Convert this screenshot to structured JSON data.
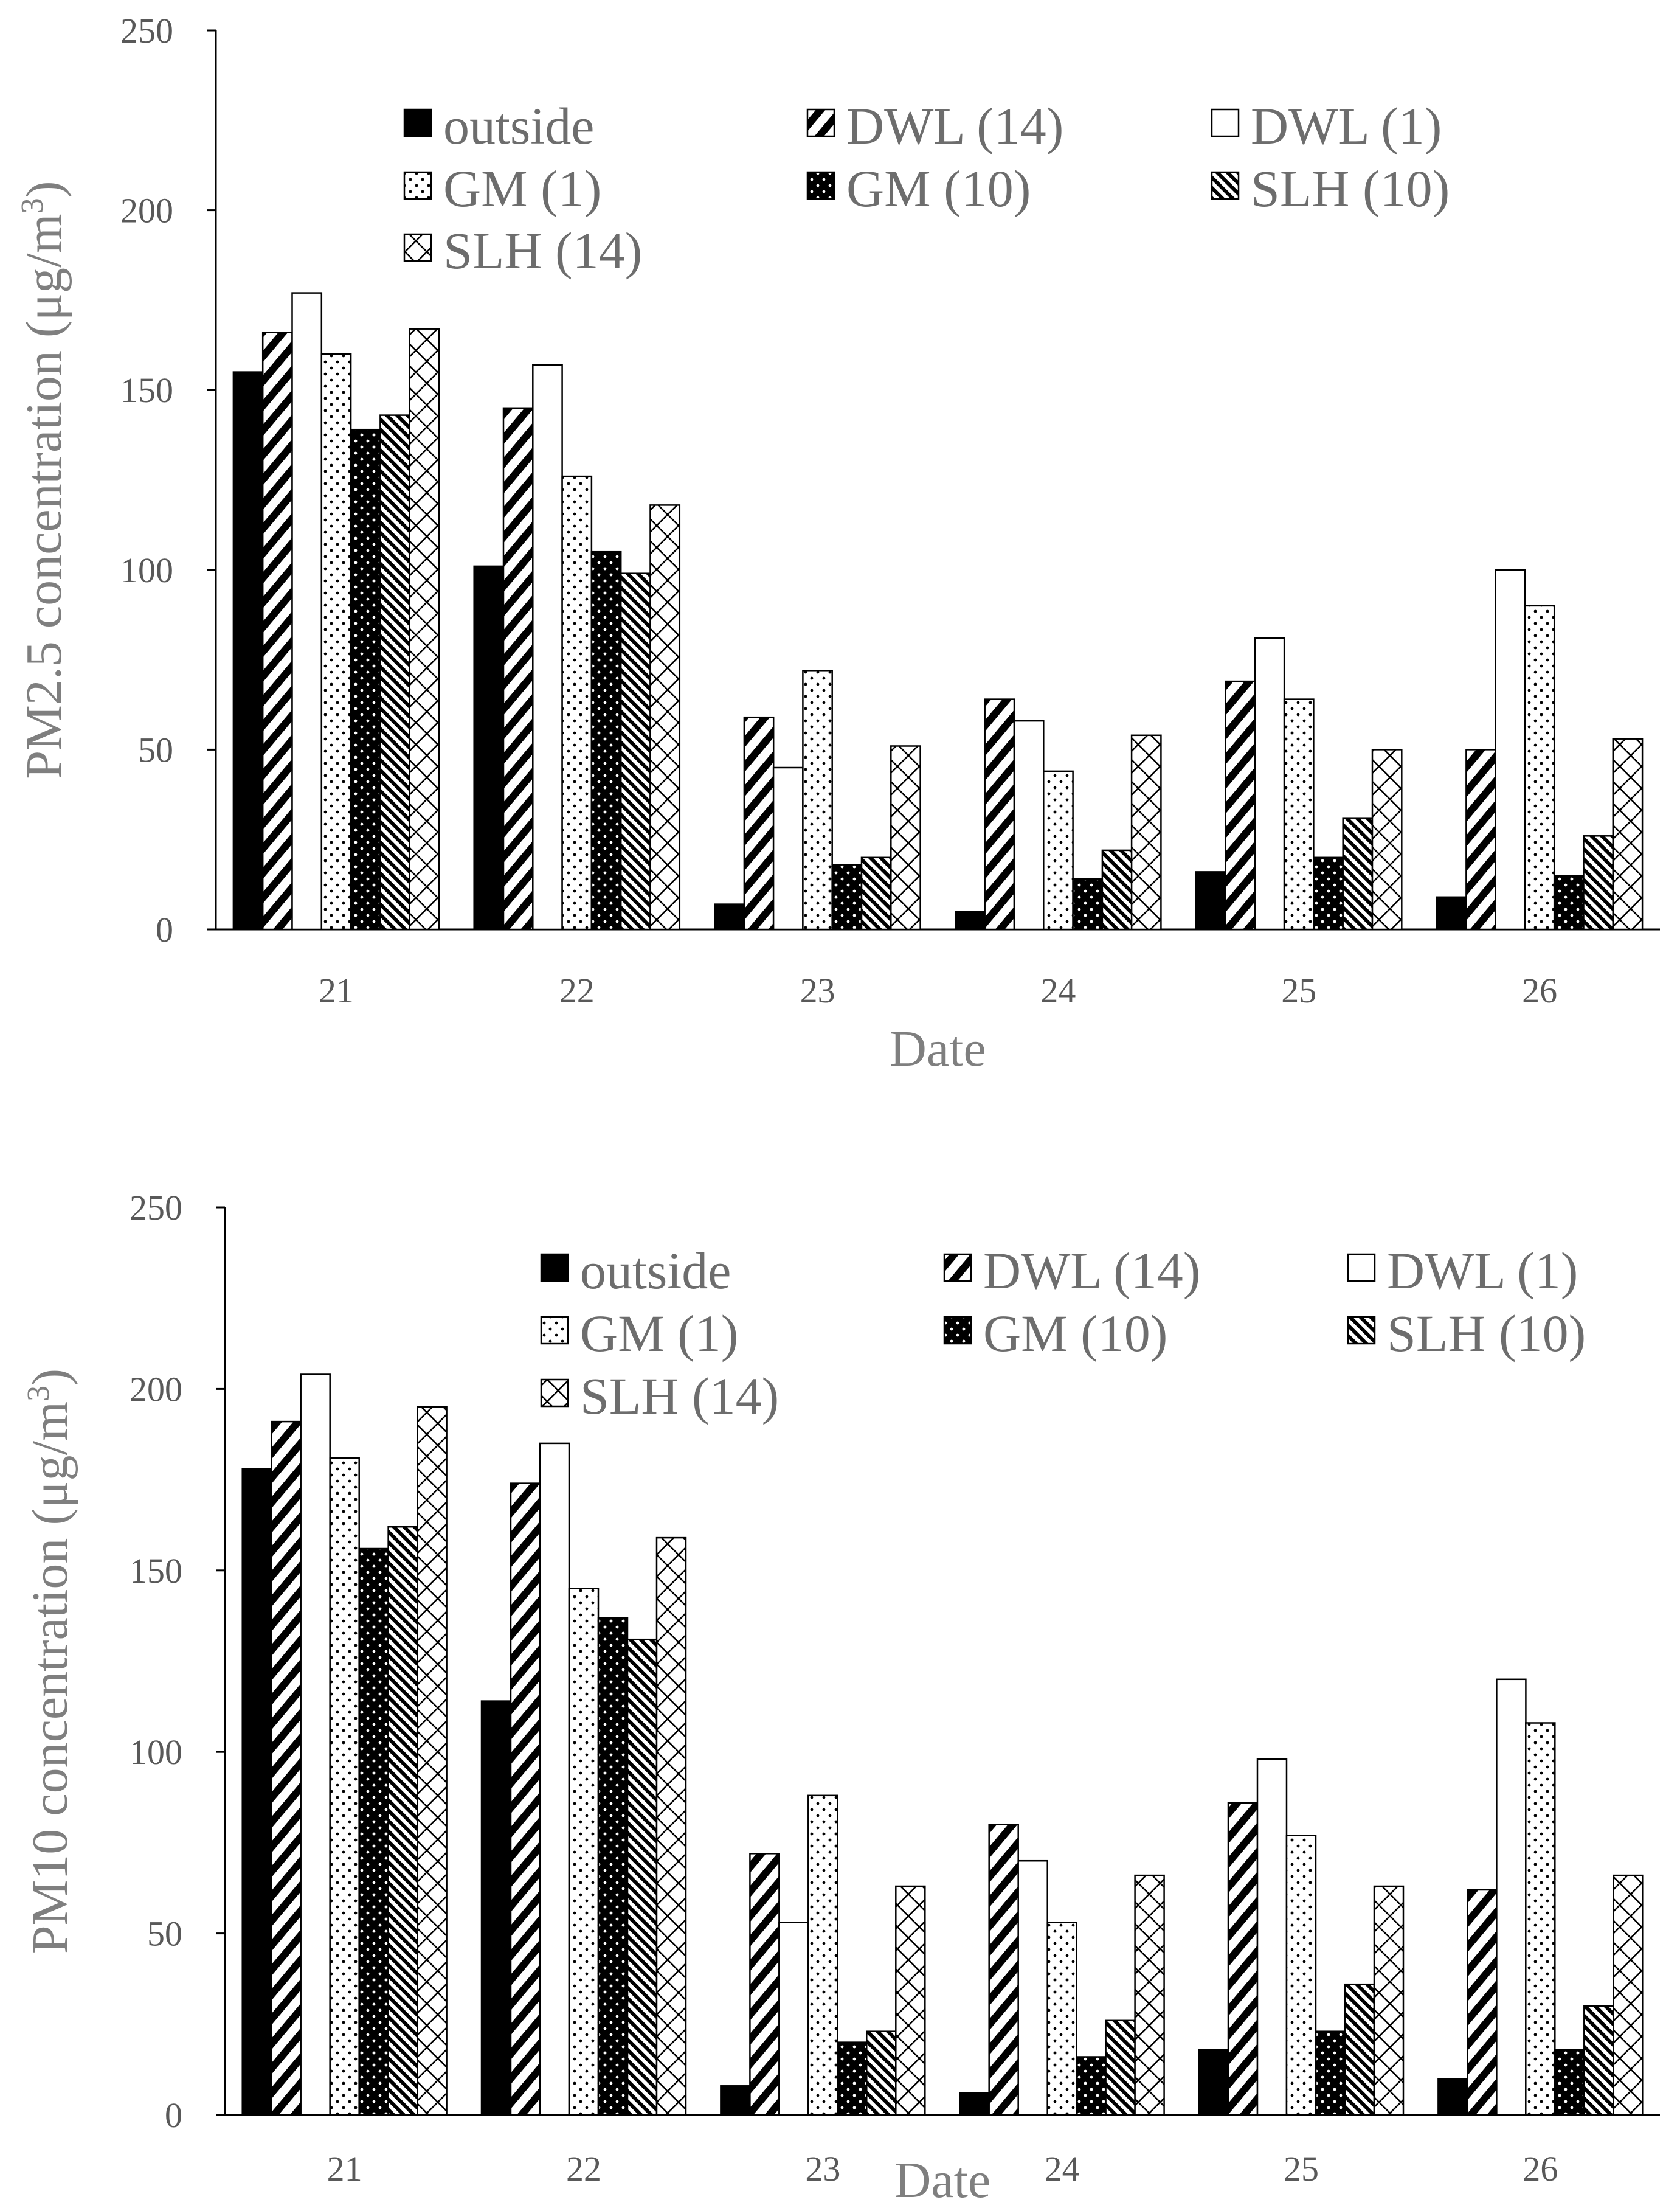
{
  "chart_data": [
    {
      "type": "bar",
      "categories": [
        "21",
        "22",
        "23",
        "24",
        "25",
        "26"
      ],
      "xlabel": "Date",
      "ylabel_prefix": "PM2.5 concentration (μg/m",
      "ylabel_sup": "3",
      "ylabel_suffix": ")",
      "ylim": [
        0,
        250
      ],
      "yticks": [
        "0",
        "50",
        "100",
        "150",
        "200",
        "250"
      ],
      "grid": false,
      "legend": "top-right",
      "series": [
        {
          "name": "outside",
          "values": [
            155,
            101,
            7,
            5,
            16,
            9
          ]
        },
        {
          "name": "DWL (14)",
          "values": [
            166,
            145,
            59,
            64,
            69,
            50
          ]
        },
        {
          "name": "DWL (1)",
          "values": [
            177,
            157,
            45,
            58,
            81,
            100
          ]
        },
        {
          "name": "GM (1)",
          "values": [
            160,
            126,
            72,
            44,
            64,
            90
          ]
        },
        {
          "name": "GM (10)",
          "values": [
            139,
            105,
            18,
            14,
            20,
            15
          ]
        },
        {
          "name": "SLH (10)",
          "values": [
            143,
            99,
            20,
            22,
            31,
            26
          ]
        },
        {
          "name": "SLH (14)",
          "values": [
            167,
            118,
            51,
            54,
            50,
            53
          ]
        }
      ]
    },
    {
      "type": "bar",
      "categories": [
        "21",
        "22",
        "23",
        "24",
        "25",
        "26"
      ],
      "xlabel": "Date",
      "ylabel_prefix": "PM10 concentration (μg/m",
      "ylabel_sup": "3",
      "ylabel_suffix": ")",
      "ylim": [
        0,
        250
      ],
      "yticks": [
        "0",
        "50",
        "100",
        "150",
        "200",
        "250"
      ],
      "grid": false,
      "legend": "top-right",
      "series": [
        {
          "name": "outside",
          "values": [
            178,
            114,
            8,
            6,
            18,
            10
          ]
        },
        {
          "name": "DWL (14)",
          "values": [
            191,
            174,
            72,
            80,
            86,
            62
          ]
        },
        {
          "name": "DWL (1)",
          "values": [
            204,
            185,
            53,
            70,
            98,
            120
          ]
        },
        {
          "name": "GM (1)",
          "values": [
            181,
            145,
            88,
            53,
            77,
            108
          ]
        },
        {
          "name": "GM (10)",
          "values": [
            156,
            137,
            20,
            16,
            23,
            18
          ]
        },
        {
          "name": "SLH (10)",
          "values": [
            162,
            131,
            23,
            26,
            36,
            30
          ]
        },
        {
          "name": "SLH (14)",
          "values": [
            195,
            159,
            63,
            66,
            63,
            66
          ]
        }
      ]
    }
  ]
}
